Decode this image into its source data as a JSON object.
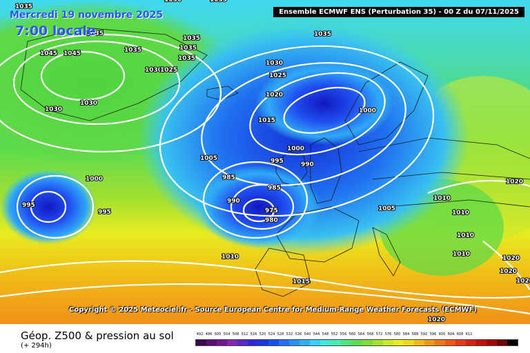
{
  "header": {
    "date": "Mercredi 19 novembre 2025",
    "local_time": "7:00 locale",
    "run_banner": "Ensemble ECMWF ENS  (Perturbation 35)  -  00 Z du 07/11/2025"
  },
  "copyright": "Copyright © 2025 Meteociel.fr - Source European Centre for Medium-Range Weather Forecasts (ECMWF)",
  "footer": {
    "title": "Géop. Z500 & pression au sol",
    "lead": "(+ 294h)"
  },
  "pressure_labels": [
    "1035",
    "1030",
    "1045",
    "1045",
    "1035",
    "1035",
    "1035",
    "1035",
    "1030",
    "1025",
    "1035",
    "1035",
    "1035",
    "1030",
    "1030",
    "1030",
    "1025",
    "1020",
    "1015",
    "1000",
    "1005",
    "1000",
    "995",
    "990",
    "985",
    "985",
    "990",
    "975",
    "980",
    "1000",
    "995",
    "995",
    "1010",
    "1010",
    "1010",
    "1010",
    "1005",
    "1020",
    "1020",
    "1020",
    "1020",
    "1010",
    "1015",
    "1020"
  ],
  "colors": {
    "low_core": "#1020c8",
    "mid": "#2a8cf0",
    "cyan": "#38c8f0",
    "green": "#4cd43c",
    "yellow": "#e8ec20",
    "orange": "#f0a018",
    "isobar": "#ffffff"
  },
  "scale": {
    "labels": [
      "492",
      "496",
      "500",
      "504",
      "508",
      "512",
      "516",
      "520",
      "524",
      "528",
      "532",
      "536",
      "540",
      "544",
      "548",
      "552",
      "556",
      "560",
      "564",
      "568",
      "572",
      "576",
      "580",
      "584",
      "588",
      "592",
      "596",
      "600",
      "604",
      "608",
      "612"
    ],
    "colors": [
      "#3a0a4a",
      "#5a1070",
      "#701890",
      "#8028b0",
      "#5a28c8",
      "#3028d8",
      "#1838e0",
      "#1850f0",
      "#2070f8",
      "#2890f8",
      "#30b0f8",
      "#38d0f8",
      "#40e8e0",
      "#48ecb0",
      "#50e480",
      "#60dc50",
      "#80dc38",
      "#a8e030",
      "#cce828",
      "#e8ec20",
      "#f0d818",
      "#f0b818",
      "#f09818",
      "#f07818",
      "#f05818",
      "#e83818",
      "#d82010",
      "#c01010",
      "#a00808",
      "#700404",
      "#000000"
    ]
  }
}
